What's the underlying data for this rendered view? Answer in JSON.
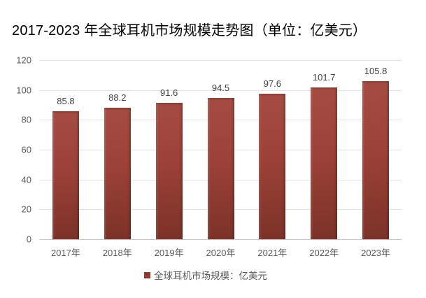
{
  "chart_data": {
    "type": "bar",
    "title": "2017-2023 年全球耳机市场规模走势图（单位：亿美元）",
    "categories": [
      "2017年",
      "2018年",
      "2019年",
      "2020年",
      "2021年",
      "2022年",
      "2023年"
    ],
    "values": [
      85.8,
      88.2,
      91.6,
      94.5,
      97.6,
      101.7,
      105.8
    ],
    "value_labels": [
      "85.8",
      "88.2",
      "91.6",
      "94.5",
      "97.6",
      "101.7",
      "105.8"
    ],
    "legend": "全球耳机市场规模：亿美元",
    "legend_position": "bottom",
    "xlabel": "",
    "ylabel": "",
    "ylim": [
      0,
      120
    ],
    "yticks": [
      0,
      20,
      40,
      60,
      80,
      100,
      120
    ],
    "grid": true,
    "colors": {
      "bar": "#9c4137",
      "bar_light": "#a54c42",
      "bar_dark": "#7c3228",
      "legend_marker": "#8b3a31",
      "gridline": "#e2e2e2",
      "axis_line": "#c6c6c6",
      "axis_label": "#595959",
      "value_label": "#404040",
      "title": "#000000",
      "background": "#ffffff"
    }
  }
}
